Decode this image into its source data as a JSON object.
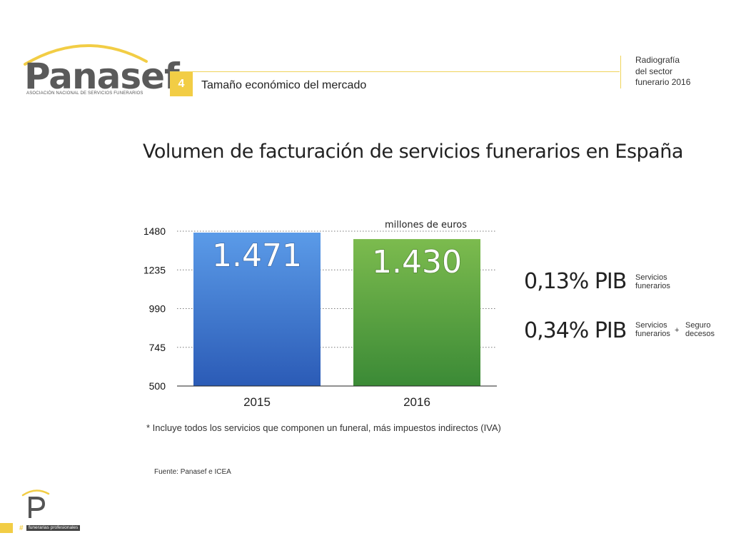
{
  "header": {
    "logo_name": "Panasef",
    "logo_subtitle": "ASOCIACIÓN NACIONAL DE SERVICIOS FUNERARIOS",
    "section_number": "4",
    "section_title": "Tamaño económico del mercado",
    "side_title": [
      "Radiografía",
      "del sector",
      "funerario 2016"
    ]
  },
  "title": "Volumen de facturación de servicios funerarios en España",
  "chart_data": {
    "type": "bar",
    "categories": [
      "2015",
      "2016"
    ],
    "values": [
      1471,
      1430
    ],
    "value_labels": [
      "1.471",
      "1.430"
    ],
    "bar_colors": [
      [
        "#5b9be8",
        "#2b5bb6"
      ],
      [
        "#7cbb4e",
        "#3b8a36"
      ]
    ],
    "unit_label": "millones de euros",
    "yticks": [
      "500",
      "745",
      "990",
      "1235",
      "1480"
    ],
    "ylim": [
      500,
      1480
    ],
    "grid": "dotted horizontal"
  },
  "pib": [
    {
      "value": "0,13% PIB",
      "note": [
        "Servicios",
        "funerarios"
      ]
    },
    {
      "value": "0,34% PIB",
      "note": [
        "Servicios",
        "funerarios"
      ],
      "plus": "+",
      "extra": [
        "Seguro",
        "decesos"
      ]
    }
  ],
  "footnote": "* Incluye todos los servicios que componen un funeral, más impuestos indirectos (IVA)",
  "source": "Fuente: Panasef e ICEA",
  "bottom_logo": {
    "hash": "#",
    "tagline": "funerarias profesionales"
  },
  "colors": {
    "accent": "#f2cd45",
    "text": "#222222"
  }
}
